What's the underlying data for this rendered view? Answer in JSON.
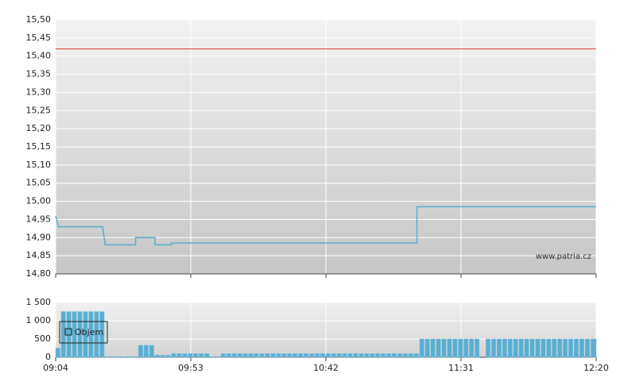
{
  "chart_data": [
    {
      "type": "line",
      "x": [
        "09:04",
        "09:05",
        "09:21",
        "09:22",
        "09:33",
        "09:33",
        "09:40",
        "09:40",
        "09:46",
        "09:46",
        "11:15",
        "11:15",
        "12:20"
      ],
      "values": [
        14.96,
        14.93,
        14.93,
        14.88,
        14.88,
        14.9,
        14.9,
        14.88,
        14.88,
        14.885,
        14.885,
        14.985,
        14.985
      ],
      "color": "#5aaed0",
      "reference_line": {
        "value": 15.42,
        "color": "#d9382e"
      },
      "xlim": [
        "09:04",
        "12:20"
      ],
      "xticks": [
        "09:04",
        "09:53",
        "10:42",
        "11:31",
        "12:20"
      ],
      "ylim": [
        14.8,
        15.5
      ],
      "yticks": [
        {
          "value": 14.8,
          "label": "14,80"
        },
        {
          "value": 14.85,
          "label": "14,85"
        },
        {
          "value": 14.9,
          "label": "14,90"
        },
        {
          "value": 14.95,
          "label": "14,95"
        },
        {
          "value": 15.0,
          "label": "15,00"
        },
        {
          "value": 15.05,
          "label": "15,05"
        },
        {
          "value": 15.1,
          "label": "15,10"
        },
        {
          "value": 15.15,
          "label": "15,15"
        },
        {
          "value": 15.2,
          "label": "15,20"
        },
        {
          "value": 15.25,
          "label": "15,25"
        },
        {
          "value": 15.3,
          "label": "15,30"
        },
        {
          "value": 15.35,
          "label": "15,35"
        },
        {
          "value": 15.4,
          "label": "15,40"
        },
        {
          "value": 15.45,
          "label": "15,45"
        },
        {
          "value": 15.5,
          "label": "15,50"
        }
      ],
      "grid": true,
      "watermark": "www.patria.cz"
    },
    {
      "type": "bar",
      "x": [
        "09:04",
        "09:06",
        "09:08",
        "09:10",
        "09:12",
        "09:14",
        "09:16",
        "09:18",
        "09:20",
        "09:22",
        "09:24",
        "09:26",
        "09:28",
        "09:30",
        "09:32",
        "09:34",
        "09:36",
        "09:38",
        "09:40",
        "09:42",
        "09:44",
        "09:46",
        "09:48",
        "09:50",
        "09:52",
        "09:54",
        "09:56",
        "09:58",
        "10:00",
        "10:02",
        "10:04",
        "10:06",
        "10:08",
        "10:10",
        "10:12",
        "10:14",
        "10:16",
        "10:18",
        "10:20",
        "10:22",
        "10:24",
        "10:26",
        "10:28",
        "10:30",
        "10:32",
        "10:34",
        "10:36",
        "10:38",
        "10:40",
        "10:42",
        "10:44",
        "10:46",
        "10:48",
        "10:50",
        "10:52",
        "10:54",
        "10:56",
        "10:58",
        "11:00",
        "11:02",
        "11:04",
        "11:06",
        "11:08",
        "11:10",
        "11:12",
        "11:14",
        "11:16",
        "11:18",
        "11:20",
        "11:22",
        "11:24",
        "11:26",
        "11:28",
        "11:30",
        "11:32",
        "11:34",
        "11:36",
        "11:38",
        "11:40",
        "11:42",
        "11:44",
        "11:46",
        "11:48",
        "11:50",
        "11:52",
        "11:54",
        "11:56",
        "11:58",
        "12:00",
        "12:02",
        "12:04",
        "12:06",
        "12:08",
        "12:10",
        "12:12",
        "12:14",
        "12:16",
        "12:18",
        "12:20"
      ],
      "series": [
        {
          "name": "Objem",
          "color": "#5aaed0",
          "values": [
            250,
            1250,
            1250,
            1250,
            1250,
            1250,
            1250,
            1250,
            1250,
            20,
            20,
            20,
            20,
            20,
            20,
            330,
            330,
            330,
            60,
            60,
            60,
            100,
            100,
            100,
            100,
            100,
            100,
            100,
            20,
            20,
            100,
            100,
            100,
            100,
            100,
            100,
            100,
            100,
            100,
            100,
            100,
            100,
            100,
            100,
            100,
            100,
            100,
            100,
            100,
            100,
            100,
            100,
            100,
            100,
            100,
            100,
            100,
            100,
            100,
            100,
            100,
            100,
            100,
            100,
            100,
            100,
            500,
            500,
            500,
            500,
            500,
            500,
            500,
            500,
            500,
            500,
            500,
            0,
            500,
            500,
            500,
            500,
            500,
            500,
            500,
            500,
            500,
            500,
            500,
            500,
            500,
            500,
            500,
            500,
            500,
            500,
            500,
            500,
            500
          ]
        }
      ],
      "xlim": [
        "09:04",
        "12:20"
      ],
      "xticks": [
        "09:04",
        "09:53",
        "10:42",
        "11:31",
        "12:20"
      ],
      "ylim": [
        0,
        1500
      ],
      "yticks": [
        0,
        500,
        {
          "value": 1000,
          "label": "1 000"
        },
        {
          "value": 1500,
          "label": "1 500"
        }
      ],
      "grid": true
    }
  ]
}
